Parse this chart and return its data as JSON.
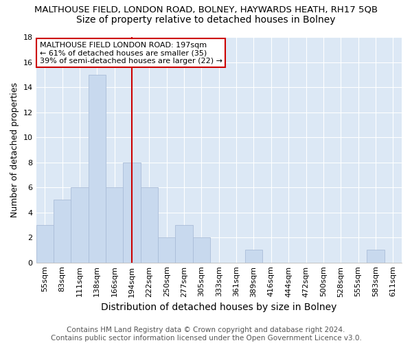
{
  "title1": "MALTHOUSE FIELD, LONDON ROAD, BOLNEY, HAYWARDS HEATH, RH17 5QB",
  "title2": "Size of property relative to detached houses in Bolney",
  "xlabel": "Distribution of detached houses by size in Bolney",
  "ylabel": "Number of detached properties",
  "categories": [
    "55sqm",
    "83sqm",
    "111sqm",
    "138sqm",
    "166sqm",
    "194sqm",
    "222sqm",
    "250sqm",
    "277sqm",
    "305sqm",
    "333sqm",
    "361sqm",
    "389sqm",
    "416sqm",
    "444sqm",
    "472sqm",
    "500sqm",
    "528sqm",
    "555sqm",
    "583sqm",
    "611sqm"
  ],
  "values": [
    3,
    5,
    6,
    15,
    6,
    8,
    6,
    2,
    3,
    2,
    0,
    0,
    1,
    0,
    0,
    0,
    0,
    0,
    0,
    1,
    0
  ],
  "bar_color": "#c8d9ee",
  "bar_edge_color": "#aabdd8",
  "highlight_index": 5,
  "highlight_line_color": "#cc0000",
  "annotation_text": "MALTHOUSE FIELD LONDON ROAD: 197sqm\n← 61% of detached houses are smaller (35)\n39% of semi-detached houses are larger (22) →",
  "annotation_box_color": "#ffffff",
  "annotation_box_edge": "#cc0000",
  "ylim": [
    0,
    18
  ],
  "yticks": [
    0,
    2,
    4,
    6,
    8,
    10,
    12,
    14,
    16,
    18
  ],
  "footer": "Contains HM Land Registry data © Crown copyright and database right 2024.\nContains public sector information licensed under the Open Government Licence v3.0.",
  "fig_background": "#ffffff",
  "plot_background": "#dce8f5",
  "grid_color": "#ffffff",
  "title1_fontsize": 9.5,
  "title2_fontsize": 10,
  "xlabel_fontsize": 10,
  "ylabel_fontsize": 9,
  "tick_fontsize": 8,
  "footer_fontsize": 7.5,
  "annotation_fontsize": 8
}
